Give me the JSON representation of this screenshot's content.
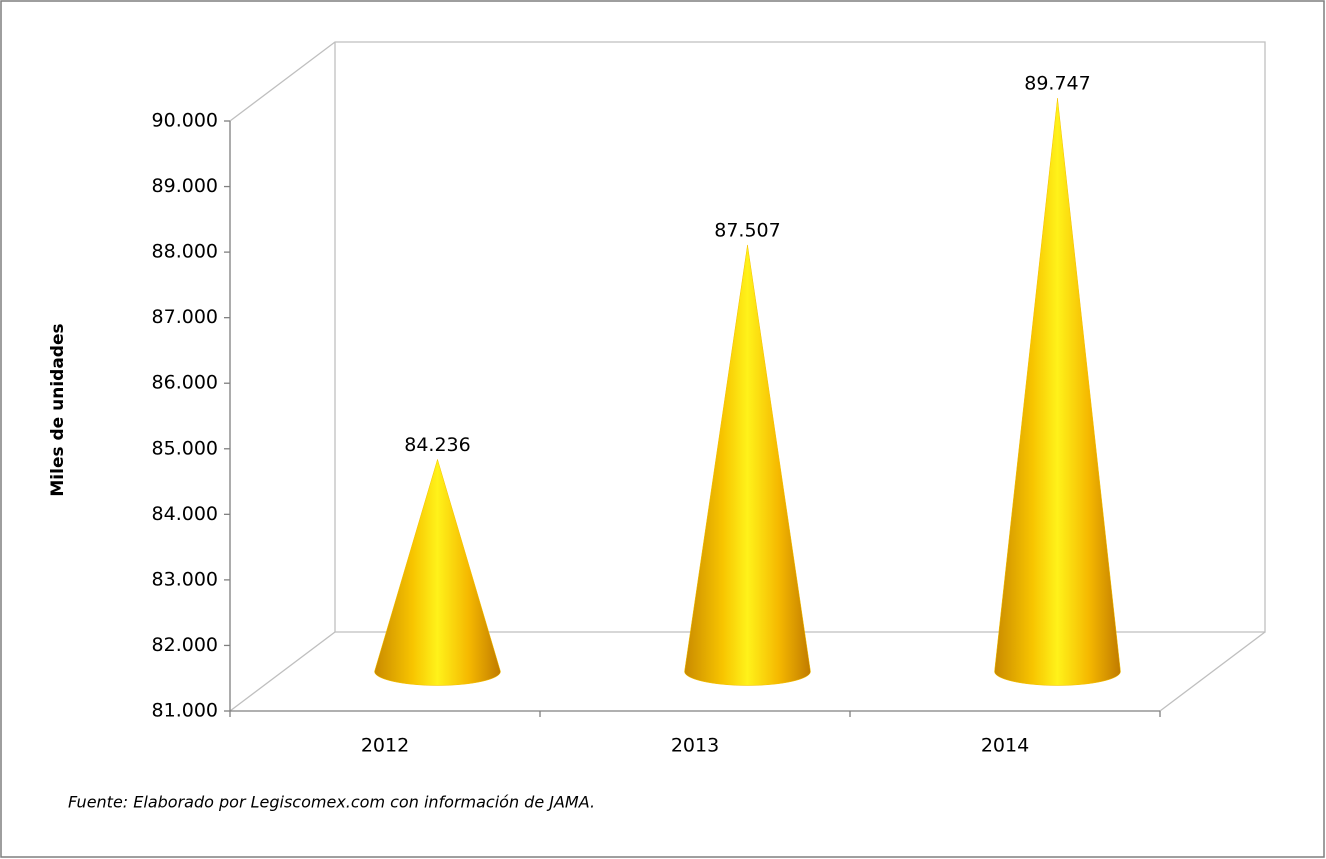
{
  "chart_data": {
    "type": "bar",
    "categories": [
      "2012",
      "2013",
      "2014"
    ],
    "values": [
      84236,
      87507,
      89747
    ],
    "value_labels": [
      "84.236",
      "87.507",
      "89.747"
    ],
    "color": "#f5c000",
    "y_label": "Miles de unidades",
    "ylim": [
      81000,
      90000
    ],
    "yticks": [
      {
        "value": 81000,
        "label": "81.000"
      },
      {
        "value": 82000,
        "label": "82.000"
      },
      {
        "value": 83000,
        "label": "83.000"
      },
      {
        "value": 84000,
        "label": "84.000"
      },
      {
        "value": 85000,
        "label": "85.000"
      },
      {
        "value": 86000,
        "label": "86.000"
      },
      {
        "value": 87000,
        "label": "87.000"
      },
      {
        "value": 88000,
        "label": "88.000"
      },
      {
        "value": 89000,
        "label": "89.000"
      },
      {
        "value": 90000,
        "label": "90.000"
      }
    ],
    "grid": false,
    "source": "Fuente: Elaborado por Legiscomex.com con información de JAMA."
  }
}
